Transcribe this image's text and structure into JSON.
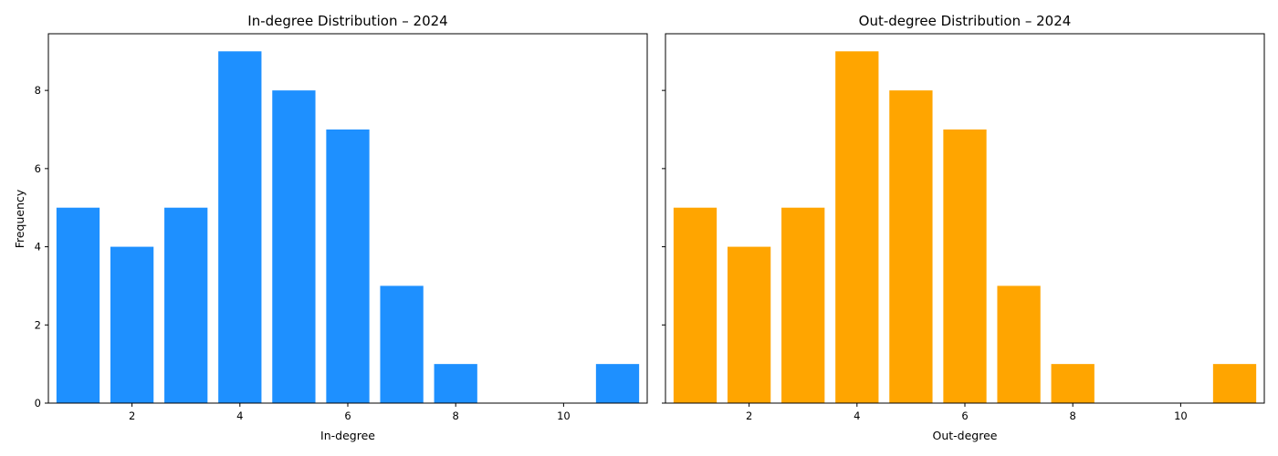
{
  "chart_data": [
    {
      "type": "bar",
      "title": "In-degree Distribution – 2024",
      "xlabel": "In-degree",
      "ylabel": "Frequency",
      "color": "#1e90ff",
      "x": [
        1,
        2,
        3,
        4,
        5,
        6,
        7,
        8,
        11
      ],
      "values": [
        5,
        4,
        5,
        9,
        8,
        7,
        3,
        1,
        1
      ],
      "xlim": [
        0.45,
        11.55
      ],
      "ylim": [
        0,
        9.45
      ],
      "xticks": [
        2,
        4,
        6,
        8,
        10
      ],
      "yticks": [
        0,
        2,
        4,
        6,
        8
      ],
      "grid": false
    },
    {
      "type": "bar",
      "title": "Out-degree Distribution – 2024",
      "xlabel": "Out-degree",
      "ylabel": "",
      "color": "#ffa500",
      "x": [
        1,
        2,
        3,
        4,
        5,
        6,
        7,
        8,
        11
      ],
      "values": [
        5,
        4,
        5,
        9,
        8,
        7,
        3,
        1,
        1
      ],
      "xlim": [
        0.45,
        11.55
      ],
      "ylim": [
        0,
        9.45
      ],
      "xticks": [
        2,
        4,
        6,
        8,
        10
      ],
      "yticks": [
        0,
        2,
        4,
        6,
        8
      ],
      "grid": false
    }
  ]
}
